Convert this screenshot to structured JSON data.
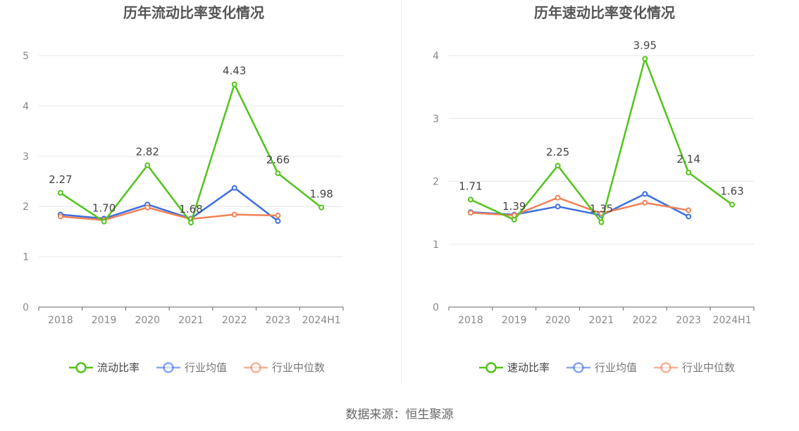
{
  "colors": {
    "primary": "#52c41a",
    "industry_avg": "#3b6fe0",
    "industry_median": "#f08256",
    "grid": "#e6e6e6",
    "axis": "#666666",
    "tick_text": "#888888",
    "title": "#555555",
    "label": "#444444"
  },
  "source": {
    "text": "数据来源：恒生聚源"
  },
  "chart_data": [
    {
      "type": "line",
      "title": "历年流动比率变化情况",
      "categories": [
        "2018",
        "2019",
        "2020",
        "2021",
        "2022",
        "2023",
        "2024H1"
      ],
      "ylim": [
        0,
        5
      ],
      "yticks": [
        0,
        1,
        2,
        3,
        4,
        5
      ],
      "grid": true,
      "legend_position": "bottom",
      "series": [
        {
          "name": "流动比率",
          "color": "#52c41a",
          "values": [
            2.27,
            1.7,
            2.82,
            1.68,
            4.43,
            2.66,
            1.98
          ],
          "labels": [
            "2.27",
            "1.70",
            "2.82",
            "1.68",
            "4.43",
            "2.66",
            "1.98"
          ]
        },
        {
          "name": "行业均值",
          "color": "#3b6fe0",
          "values": [
            1.84,
            1.76,
            2.04,
            1.76,
            2.37,
            1.71,
            null
          ]
        },
        {
          "name": "行业中位数",
          "color": "#f08256",
          "values": [
            1.8,
            1.73,
            1.98,
            1.75,
            1.84,
            1.82,
            null
          ]
        }
      ]
    },
    {
      "type": "line",
      "title": "历年速动比率变化情况",
      "categories": [
        "2018",
        "2019",
        "2020",
        "2021",
        "2022",
        "2023",
        "2024H1"
      ],
      "ylim": [
        0,
        4
      ],
      "yticks": [
        0,
        1,
        2,
        3,
        4
      ],
      "grid": true,
      "legend_position": "bottom",
      "series": [
        {
          "name": "速动比率",
          "color": "#52c41a",
          "values": [
            1.71,
            1.39,
            2.25,
            1.35,
            3.95,
            2.14,
            1.63
          ],
          "labels": [
            "1.71",
            "1.39",
            "2.25",
            "1.35",
            "3.95",
            "2.14",
            "1.63"
          ]
        },
        {
          "name": "行业均值",
          "color": "#3b6fe0",
          "values": [
            1.51,
            1.47,
            1.6,
            1.46,
            1.8,
            1.44,
            null
          ]
        },
        {
          "name": "行业中位数",
          "color": "#f08256",
          "values": [
            1.5,
            1.46,
            1.74,
            1.49,
            1.66,
            1.54,
            null
          ]
        }
      ]
    }
  ]
}
